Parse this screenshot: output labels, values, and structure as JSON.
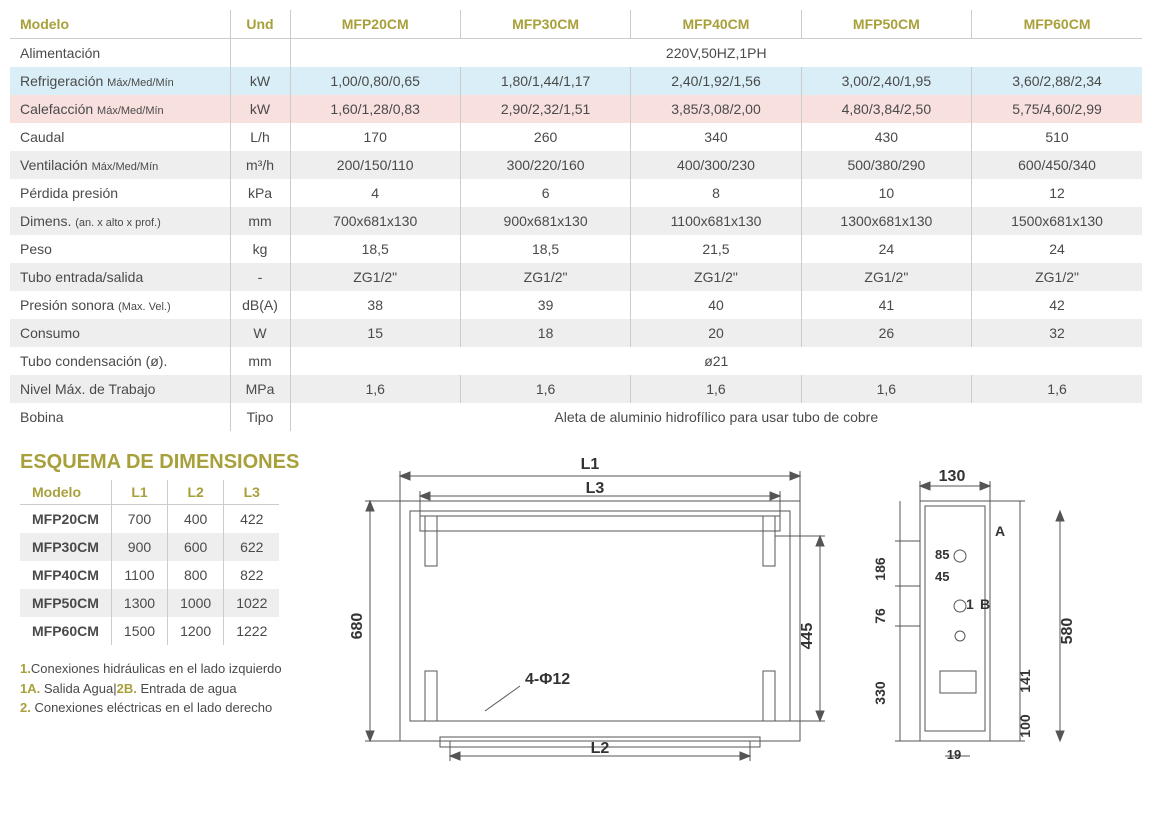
{
  "main_table": {
    "headers": {
      "modelo": "Modelo",
      "und": "Und",
      "cols": [
        "MFP20CM",
        "MFP30CM",
        "MFP40CM",
        "MFP50CM",
        "MFP60CM"
      ]
    },
    "rows": [
      {
        "label": "Alimentación",
        "sub": "",
        "und": "",
        "span": true,
        "spanval": "220V,50HZ,1PH",
        "cls": ""
      },
      {
        "label": "Refrigeración",
        "sub": "Máx/Med/Mín",
        "und": "kW",
        "vals": [
          "1,00/0,80/0,65",
          "1,80/1,44/1,17",
          "2,40/1,92/1,56",
          "3,00/2,40/1,95",
          "3,60/2,88/2,34"
        ],
        "cls": "row-blue"
      },
      {
        "label": "Calefacción",
        "sub": "Máx/Med/Mín",
        "und": "kW",
        "vals": [
          "1,60/1,28/0,83",
          "2,90/2,32/1,51",
          "3,85/3,08/2,00",
          "4,80/3,84/2,50",
          "5,75/4,60/2,99"
        ],
        "cls": "row-pink"
      },
      {
        "label": "Caudal",
        "sub": "",
        "und": "L/h",
        "vals": [
          "170",
          "260",
          "340",
          "430",
          "510"
        ],
        "cls": ""
      },
      {
        "label": "Ventilación",
        "sub": "Máx/Med/Mín",
        "und": "m³/h",
        "vals": [
          "200/150/110",
          "300/220/160",
          "400/300/230",
          "500/380/290",
          "600/450/340"
        ],
        "cls": "row-gray"
      },
      {
        "label": "Pérdida presión",
        "sub": "",
        "und": "kPa",
        "vals": [
          "4",
          "6",
          "8",
          "10",
          "12"
        ],
        "cls": ""
      },
      {
        "label": "Dimens.",
        "sub": "(an. x alto x prof.)",
        "und": "mm",
        "vals": [
          "700x681x130",
          "900x681x130",
          "1100x681x130",
          "1300x681x130",
          "1500x681x130"
        ],
        "cls": "row-gray"
      },
      {
        "label": "Peso",
        "sub": "",
        "und": "kg",
        "vals": [
          "18,5",
          "18,5",
          "21,5",
          "24",
          "24"
        ],
        "cls": ""
      },
      {
        "label": "Tubo entrada/salida",
        "sub": "",
        "und": "-",
        "vals": [
          "ZG1/2\"",
          "ZG1/2\"",
          "ZG1/2\"",
          "ZG1/2\"",
          "ZG1/2\""
        ],
        "cls": "row-gray"
      },
      {
        "label": "Presión sonora",
        "sub": "(Max. Vel.)",
        "und": "dB(A)",
        "vals": [
          "38",
          "39",
          "40",
          "41",
          "42"
        ],
        "cls": ""
      },
      {
        "label": "Consumo",
        "sub": "",
        "und": "W",
        "vals": [
          "15",
          "18",
          "20",
          "26",
          "32"
        ],
        "cls": "row-gray"
      },
      {
        "label": "Tubo condensación (ø).",
        "sub": "",
        "und": "mm",
        "span": true,
        "spanval": "ø21",
        "cls": ""
      },
      {
        "label": "Nivel Máx. de Trabajo",
        "sub": "",
        "und": "MPa",
        "vals": [
          "1,6",
          "1,6",
          "1,6",
          "1,6",
          "1,6"
        ],
        "cls": "row-gray"
      },
      {
        "label": "Bobina",
        "sub": "",
        "und": "Tipo",
        "span": true,
        "spanval": "Aleta de aluminio hidrofílico para usar tubo de cobre",
        "cls": ""
      }
    ]
  },
  "esquema_title": "ESQUEMA DE DIMENSIONES",
  "dims_table": {
    "headers": [
      "Modelo",
      "L1",
      "L2",
      "L3"
    ],
    "rows": [
      {
        "m": "MFP20CM",
        "v": [
          "700",
          "400",
          "422"
        ],
        "alt": false
      },
      {
        "m": "MFP30CM",
        "v": [
          "900",
          "600",
          "622"
        ],
        "alt": true
      },
      {
        "m": "MFP40CM",
        "v": [
          "1100",
          "800",
          "822"
        ],
        "alt": false
      },
      {
        "m": "MFP50CM",
        "v": [
          "1300",
          "1000",
          "1022"
        ],
        "alt": true
      },
      {
        "m": "MFP60CM",
        "v": [
          "1500",
          "1200",
          "1222"
        ],
        "alt": false
      }
    ]
  },
  "notes": {
    "l1a": "1.",
    "l1b": "Conexiones hidráulicas en el lado izquierdo",
    "l2a": "1A.",
    "l2b": " Salida Agua",
    "l2c": "2B.",
    "l2d": " Entrada de agua",
    "l3a": "2.",
    "l3b": " Conexiones eléctricas en el lado derecho"
  },
  "diagram": {
    "L1": "L1",
    "L2": "L2",
    "L3": "L3",
    "h680": "680",
    "w445": "445",
    "hole": "4-Φ12",
    "d130": "130",
    "d85": "85",
    "d45": "45",
    "d186": "186",
    "d76": "76",
    "d330": "330",
    "d141": "141",
    "d100": "100",
    "d19": "19",
    "d580": "580",
    "A": "A",
    "B": "B",
    "m1": "1"
  },
  "colors": {
    "accent": "#a8a03a",
    "blue": "#d9eef6",
    "pink": "#f8e0de",
    "gray": "#eeeeee",
    "line": "#555"
  }
}
